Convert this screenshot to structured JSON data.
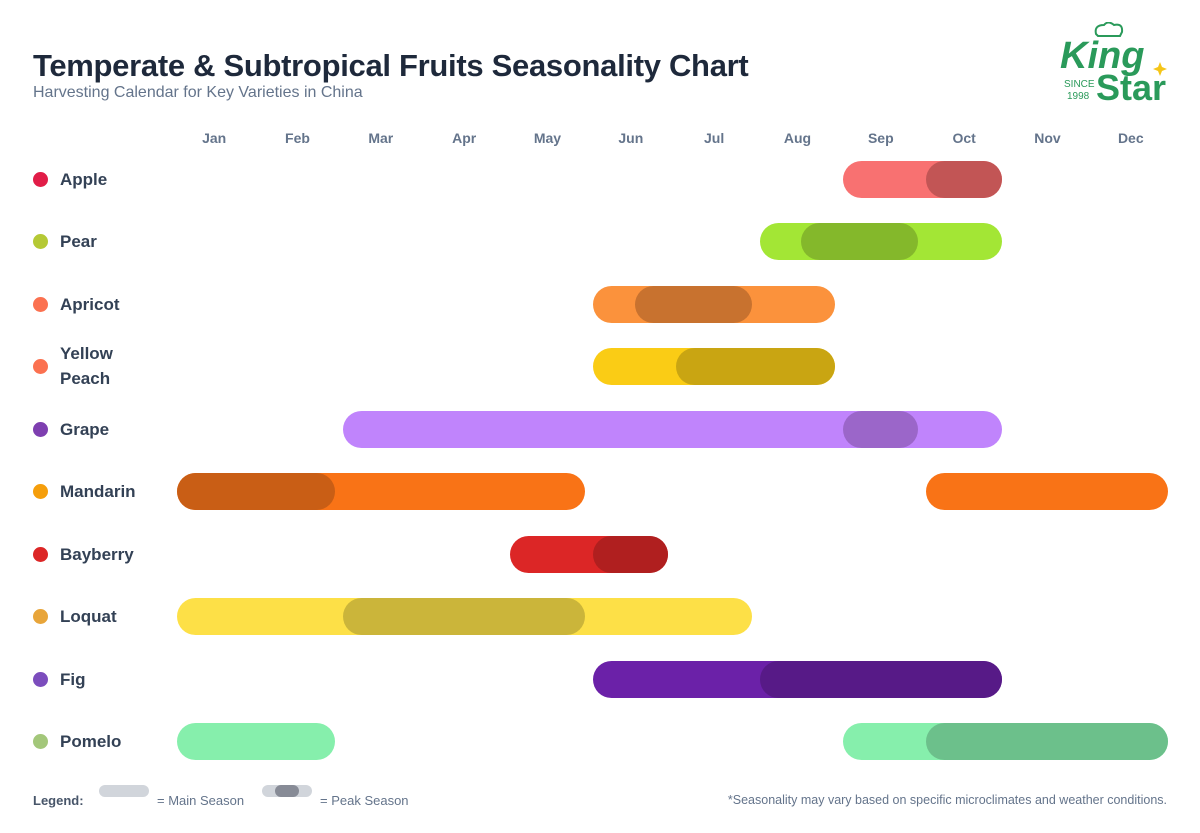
{
  "brand": {
    "logo_line1": "King",
    "logo_line2": "Star",
    "logo_since": "SINCE",
    "logo_year": "1998",
    "color": "#2a9a5a",
    "star_color": "#f5c518"
  },
  "chart_data": {
    "type": "gantt",
    "title": "Temperate & Subtropical Fruits Seasonality Chart",
    "subtitle": "Harvesting Calendar for Key Varieties in China",
    "months": [
      "Jan",
      "Feb",
      "Mar",
      "Apr",
      "May",
      "Jun",
      "Jul",
      "Aug",
      "Sep",
      "Oct",
      "Nov",
      "Dec"
    ],
    "fruits": [
      {
        "name": "Apple",
        "icon": "apple-icon",
        "icon_color": "#e11d48",
        "color": "#f87171",
        "peak_color": "#c25555",
        "main": [
          {
            "start": "Sep",
            "end": "Oct"
          }
        ],
        "peak": [
          {
            "start": "Oct",
            "end": "Oct"
          }
        ]
      },
      {
        "name": "Pear",
        "icon": "pear-icon",
        "icon_color": "#b5c935",
        "color": "#a3e635",
        "peak_color": "#84b82b",
        "main": [
          {
            "start": "Aug",
            "end": "Oct"
          }
        ],
        "peak": [
          {
            "start": "mid-Aug",
            "end": "Sep"
          }
        ]
      },
      {
        "name": "Apricot",
        "icon": "peach-icon",
        "icon_color": "#fb7150",
        "color": "#fb923c",
        "peak_color": "#c8722f",
        "main": [
          {
            "start": "Jun",
            "end": "Aug"
          }
        ],
        "peak": [
          {
            "start": "mid-Jun",
            "end": "Jul"
          }
        ]
      },
      {
        "name": "Yellow Peach",
        "icon": "peach-icon",
        "icon_color": "#fb7150",
        "color": "#facc15",
        "peak_color": "#c9a512",
        "main": [
          {
            "start": "Jun",
            "end": "Aug"
          }
        ],
        "peak": [
          {
            "start": "Jul",
            "end": "Aug"
          }
        ]
      },
      {
        "name": "Grape",
        "icon": "grape-icon",
        "icon_color": "#7e3fb0",
        "color": "#c084fc",
        "peak_color": "#9b66c9",
        "main": [
          {
            "start": "Mar",
            "end": "Oct"
          }
        ],
        "peak": [
          {
            "start": "Sep",
            "end": "Sep"
          }
        ]
      },
      {
        "name": "Mandarin",
        "icon": "mandarin-icon",
        "icon_color": "#f59e0b",
        "color": "#f97316",
        "peak_color": "#c95e15",
        "main": [
          {
            "start": "Jan",
            "end": "May"
          },
          {
            "start": "Oct",
            "end": "Dec"
          }
        ],
        "peak": [
          {
            "start": "Jan",
            "end": "Feb"
          }
        ]
      },
      {
        "name": "Bayberry",
        "icon": "cherry-icon",
        "icon_color": "#dc2626",
        "color": "#dc2626",
        "peak_color": "#b01f1f",
        "main": [
          {
            "start": "May",
            "end": "Jun"
          }
        ],
        "peak": [
          {
            "start": "Jun",
            "end": "Jun"
          }
        ]
      },
      {
        "name": "Loquat",
        "icon": "loquat-icon",
        "icon_color": "#e8a53a",
        "color": "#fde047",
        "peak_color": "#cbb53a",
        "main": [
          {
            "start": "Jan",
            "end": "Jul"
          }
        ],
        "peak": [
          {
            "start": "Mar",
            "end": "May"
          }
        ]
      },
      {
        "name": "Fig",
        "icon": "fig-icon",
        "icon_color": "#7c4dbd",
        "color": "#6b21a8",
        "peak_color": "#571a87",
        "main": [
          {
            "start": "Jun",
            "end": "Oct"
          }
        ],
        "peak": [
          {
            "start": "Aug",
            "end": "Oct"
          }
        ]
      },
      {
        "name": "Pomelo",
        "icon": "pomelo-icon",
        "icon_color": "#a3c77a",
        "color": "#86efac",
        "peak_color": "#6cc08b",
        "main": [
          {
            "start": "Jan",
            "end": "Feb"
          },
          {
            "start": "Sep",
            "end": "Dec"
          }
        ],
        "peak": [
          {
            "start": "Oct",
            "end": "Dec"
          }
        ]
      }
    ],
    "legend": {
      "label": "Legend:",
      "main": "= Main Season",
      "peak": "= Peak Season",
      "swatch_color": "#d1d5db",
      "peak_swatch_color": "#878b96"
    },
    "note": "*Seasonality may vary based on specific microclimates and weather conditions."
  }
}
